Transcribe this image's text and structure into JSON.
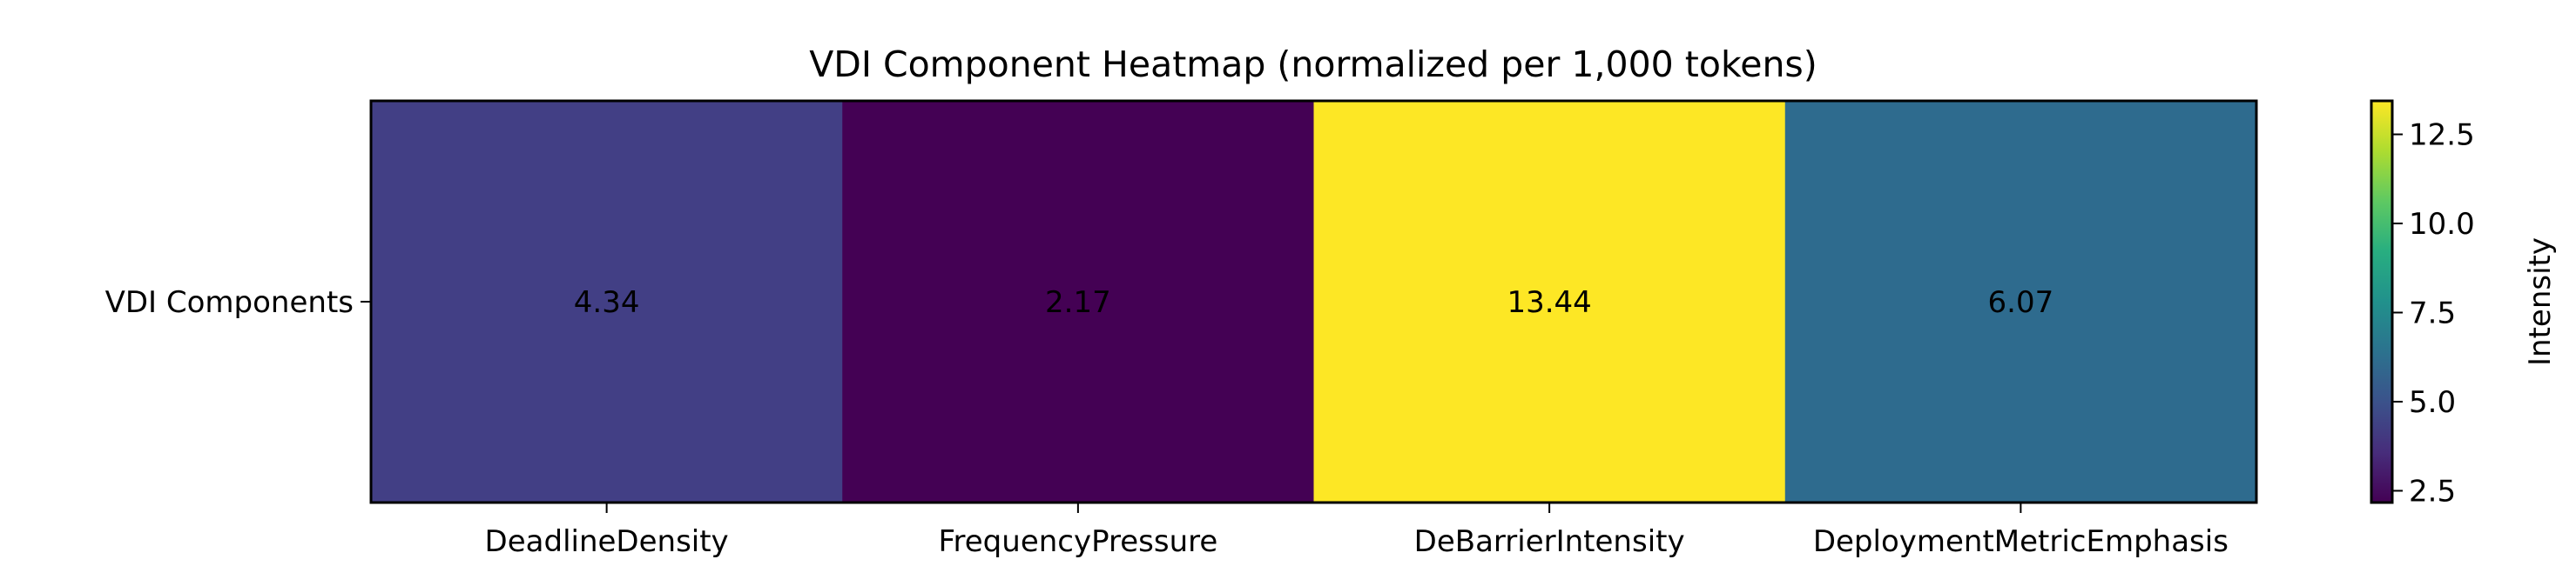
{
  "chart_data": {
    "type": "heatmap",
    "title": "VDI Component Heatmap (normalized per 1,000 tokens)",
    "rows": [
      "VDI Components"
    ],
    "columns": [
      "DeadlineDensity",
      "FrequencyPressure",
      "DeBarrierIntensity",
      "DeploymentMetricEmphasis"
    ],
    "values": [
      [
        4.34,
        2.17,
        13.44,
        6.07
      ]
    ],
    "value_labels": [
      "4.34",
      "2.17",
      "13.44",
      "6.07"
    ],
    "colormap": "viridis",
    "cell_colors": [
      "#423f85",
      "#440154",
      "#fde725",
      "#2e6b8e"
    ],
    "colorbar": {
      "label": "Intensity",
      "range": [
        2.17,
        13.44
      ],
      "ticks": [
        2.5,
        5.0,
        7.5,
        10.0,
        12.5
      ],
      "tick_labels": [
        "2.5",
        "5.0",
        "7.5",
        "10.0",
        "12.5"
      ]
    }
  }
}
